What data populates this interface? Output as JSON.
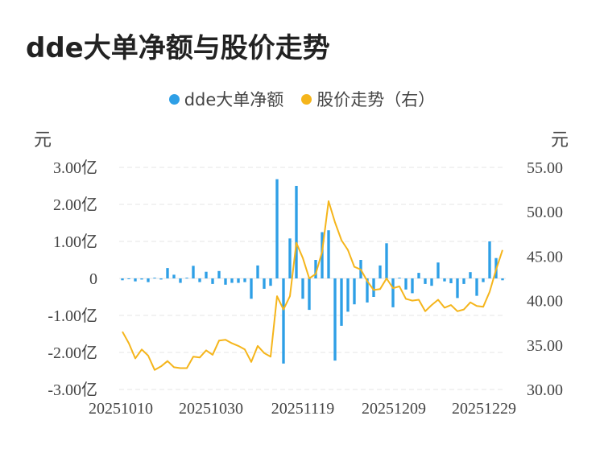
{
  "title": "dde大单净额与股价走势",
  "legend": {
    "bar_label": "dde大单净额",
    "line_label": "股价走势（右）"
  },
  "units": {
    "left": "元",
    "right": "元"
  },
  "colors": {
    "bar": "#2e9fe6",
    "line": "#f5b51b",
    "grid": "#e6e6e6"
  },
  "chart_data": {
    "type": "bar+line",
    "x_tick_labels": [
      "20251010",
      "20251030",
      "20251119",
      "20251209",
      "20251229"
    ],
    "left_axis": {
      "min": -3,
      "max": 3,
      "ticks": [
        3,
        2,
        1,
        0,
        -1,
        -2,
        -3
      ],
      "tick_labels": [
        "3.00亿",
        "2.00亿",
        "1.00亿",
        "0",
        "-1.00亿",
        "-2.00亿",
        "-3.00亿"
      ]
    },
    "right_axis": {
      "min": 30,
      "max": 55,
      "ticks": [
        55,
        50,
        45,
        40,
        35,
        30
      ],
      "tick_labels": [
        "55.00",
        "50.00",
        "45.00",
        "40.00",
        "35.00",
        "30.00"
      ]
    },
    "series": [
      {
        "name": "dde大单净额",
        "kind": "bar",
        "axis": "left",
        "values": [
          -0.05,
          -0.02,
          -0.08,
          -0.03,
          -0.1,
          0.02,
          -0.03,
          0.28,
          0.1,
          -0.12,
          0.02,
          0.34,
          -0.1,
          0.18,
          -0.15,
          0.2,
          -0.17,
          -0.12,
          -0.12,
          -0.1,
          -0.55,
          0.35,
          -0.28,
          -0.2,
          2.68,
          -2.3,
          1.08,
          2.5,
          -0.55,
          -0.85,
          0.5,
          1.25,
          1.3,
          -2.22,
          -1.28,
          -0.9,
          -0.7,
          0.5,
          -0.65,
          -0.5,
          0.35,
          0.95,
          -0.78,
          0.02,
          -0.3,
          -0.4,
          0.15,
          -0.15,
          -0.2,
          0.43,
          -0.08,
          -0.13,
          -0.53,
          -0.15,
          0.17,
          -0.47,
          -0.1,
          1.0,
          0.55,
          -0.05
        ]
      },
      {
        "name": "股价走势（右）",
        "kind": "line",
        "axis": "right",
        "values": [
          36.5,
          35.2,
          33.5,
          34.5,
          33.8,
          32.2,
          32.6,
          33.2,
          32.5,
          32.4,
          32.4,
          33.7,
          33.6,
          34.4,
          33.9,
          35.5,
          35.6,
          35.2,
          34.9,
          34.5,
          33.1,
          34.9,
          34.1,
          33.7,
          40.5,
          39.0,
          40.5,
          46.5,
          44.8,
          42.5,
          43.0,
          45.5,
          51.2,
          48.8,
          46.8,
          45.7,
          43.8,
          43.5,
          42.2,
          41.2,
          41.3,
          42.5,
          41.4,
          41.6,
          40.2,
          40.0,
          40.1,
          38.8,
          39.5,
          40.1,
          39.2,
          39.5,
          38.8,
          39.0,
          39.8,
          39.4,
          39.3,
          41.0,
          43.5,
          45.7
        ]
      }
    ]
  }
}
